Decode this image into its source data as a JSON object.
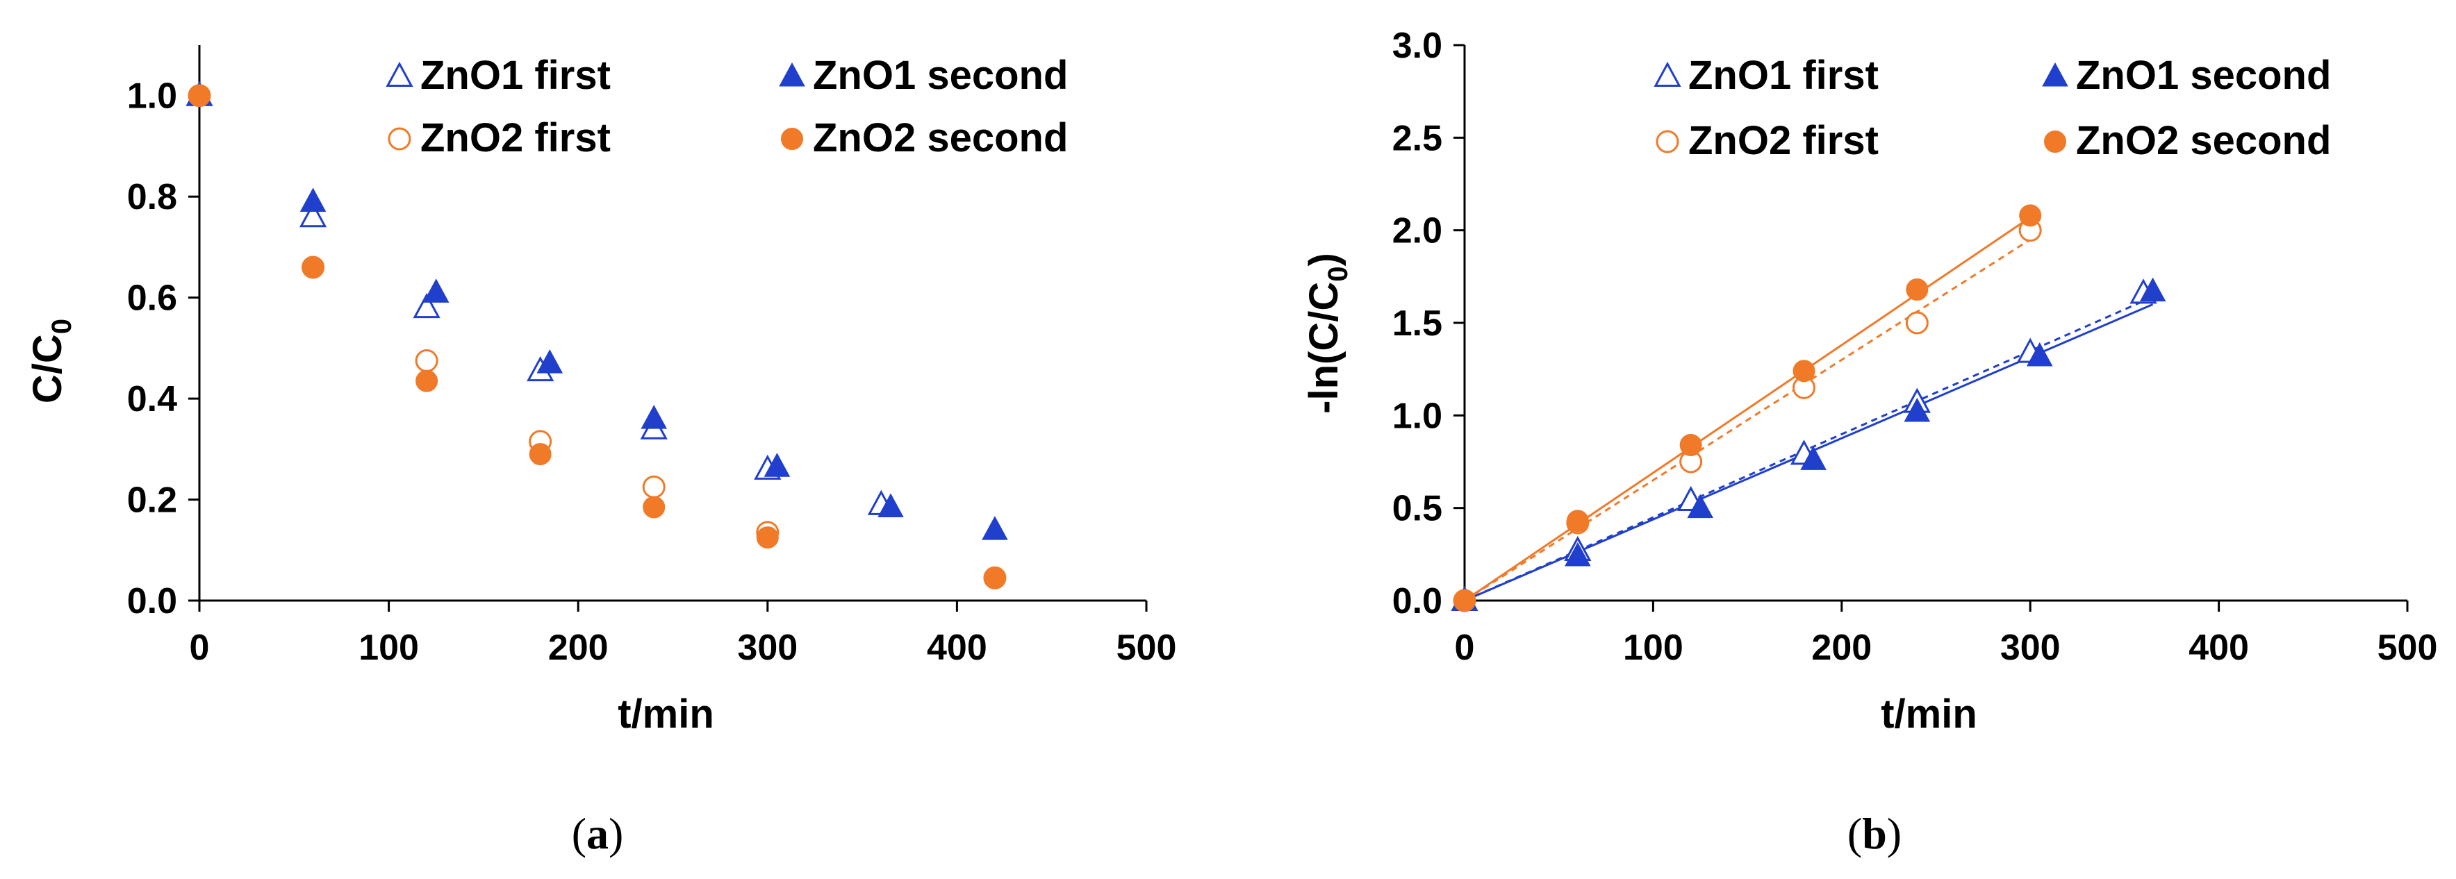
{
  "colors": {
    "zno1": "#1f3fcc",
    "zno2": "#f07a28",
    "axis": "#000000"
  },
  "chart_data": [
    {
      "id": "a",
      "type": "scatter",
      "caption": "a",
      "xlabel": "t/min",
      "ylabel": "C/C",
      "ylabel_sub": "0",
      "xlim": [
        0,
        500
      ],
      "ylim": [
        0,
        1.1
      ],
      "xticks": [
        0,
        100,
        200,
        300,
        400,
        500
      ],
      "xtick_labels": [
        "0",
        "100",
        "200",
        "300",
        "400",
        "500"
      ],
      "yticks": [
        0,
        0.2,
        0.4,
        0.6,
        0.8,
        1.0
      ],
      "ytick_labels": [
        "0.0",
        "0.2",
        "0.4",
        "0.6",
        "0.8",
        "1.0"
      ],
      "legend_position": "top-right",
      "series": [
        {
          "name": "ZnO1 first",
          "marker": "triangle",
          "filled": false,
          "color_key": "zno1",
          "x": [
            0,
            60,
            120,
            180,
            240,
            300,
            360
          ],
          "y": [
            1.0,
            0.76,
            0.58,
            0.455,
            0.34,
            0.26,
            0.19
          ]
        },
        {
          "name": "ZnO1 second",
          "marker": "triangle",
          "filled": true,
          "color_key": "zno1",
          "x": [
            0,
            60,
            125,
            185,
            240,
            305,
            365,
            420
          ],
          "y": [
            1.0,
            0.79,
            0.61,
            0.47,
            0.36,
            0.265,
            0.185,
            0.14
          ]
        },
        {
          "name": "ZnO2 first",
          "marker": "circle",
          "filled": false,
          "color_key": "zno2",
          "x": [
            0,
            60,
            120,
            180,
            240,
            300,
            420
          ],
          "y": [
            1.0,
            0.66,
            0.475,
            0.315,
            0.225,
            0.135,
            0.045
          ]
        },
        {
          "name": "ZnO2 second",
          "marker": "circle",
          "filled": true,
          "color_key": "zno2",
          "x": [
            0,
            60,
            120,
            180,
            240,
            300,
            420
          ],
          "y": [
            1.0,
            0.66,
            0.435,
            0.29,
            0.185,
            0.125,
            0.045
          ]
        }
      ]
    },
    {
      "id": "b",
      "type": "scatter",
      "caption": "b",
      "xlabel": "t/min",
      "ylabel": "-ln(C/C",
      "ylabel_sub": "0",
      "ylabel_end": ")",
      "xlim": [
        0,
        500
      ],
      "ylim": [
        0,
        3.0
      ],
      "xticks": [
        0,
        100,
        200,
        300,
        400,
        500
      ],
      "xtick_labels": [
        "0",
        "100",
        "200",
        "300",
        "400",
        "500"
      ],
      "yticks": [
        0,
        0.5,
        1.0,
        1.5,
        2.0,
        2.5,
        3.0
      ],
      "ytick_labels": [
        "0.0",
        "0.5",
        "1.0",
        "1.5",
        "2.0",
        "2.5",
        "3.0"
      ],
      "legend_position": "top-right",
      "series": [
        {
          "name": "ZnO1 first",
          "marker": "triangle",
          "filled": false,
          "color_key": "zno1",
          "x": [
            0,
            60,
            120,
            180,
            240,
            300,
            360
          ],
          "y": [
            0.0,
            0.27,
            0.54,
            0.79,
            1.07,
            1.34,
            1.66
          ],
          "fit": {
            "x": [
              0,
              365
            ],
            "y": [
              0.0,
              1.64
            ],
            "dashed": true
          }
        },
        {
          "name": "ZnO1 second",
          "marker": "triangle",
          "filled": true,
          "color_key": "zno1",
          "x": [
            0,
            60,
            125,
            185,
            240,
            305,
            365
          ],
          "y": [
            0.0,
            0.24,
            0.5,
            0.76,
            1.02,
            1.32,
            1.67
          ],
          "fit": {
            "x": [
              0,
              365
            ],
            "y": [
              0.0,
              1.6
            ],
            "dashed": false
          }
        },
        {
          "name": "ZnO2 first",
          "marker": "circle",
          "filled": false,
          "color_key": "zno2",
          "x": [
            0,
            60,
            120,
            180,
            240,
            300
          ],
          "y": [
            0.0,
            0.42,
            0.75,
            1.15,
            1.5,
            2.0
          ],
          "fit": {
            "x": [
              0,
              300
            ],
            "y": [
              0.0,
              1.95
            ],
            "dashed": true
          }
        },
        {
          "name": "ZnO2 second",
          "marker": "circle",
          "filled": true,
          "color_key": "zno2",
          "x": [
            0,
            60,
            120,
            180,
            240,
            300
          ],
          "y": [
            0.0,
            0.43,
            0.84,
            1.24,
            1.68,
            2.08
          ],
          "fit": {
            "x": [
              0,
              300
            ],
            "y": [
              0.0,
              2.07
            ],
            "dashed": false
          }
        }
      ]
    }
  ]
}
